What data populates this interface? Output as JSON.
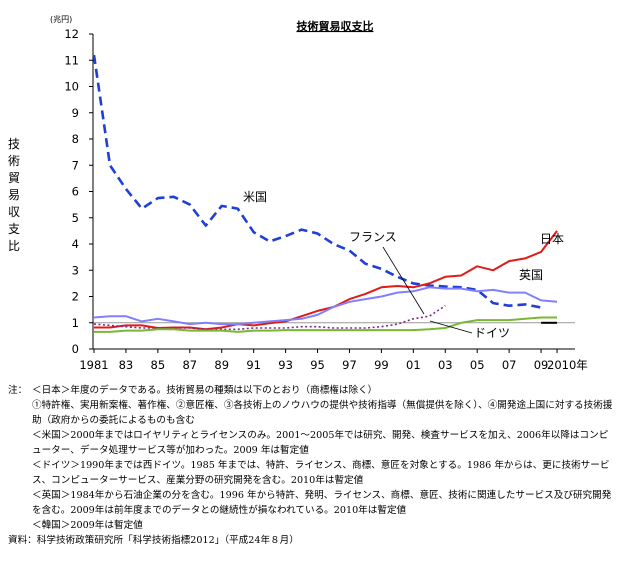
{
  "chart_data": {
    "type": "line",
    "title": "技術貿易収支比",
    "unit_label": "(兆円)",
    "ylabel": "技術貿易収支比",
    "ylim": [
      0,
      12
    ],
    "yticks": [
      "0",
      "1",
      "2",
      "3",
      "4",
      "5",
      "6",
      "7",
      "8",
      "9",
      "10",
      "11",
      "12"
    ],
    "xlim": [
      1981,
      2011
    ],
    "xticks": [
      {
        "x": 1981,
        "label": "1981"
      },
      {
        "x": 1983,
        "label": "83"
      },
      {
        "x": 1985,
        "label": "85"
      },
      {
        "x": 1987,
        "label": "87"
      },
      {
        "x": 1989,
        "label": "89"
      },
      {
        "x": 1991,
        "label": "91"
      },
      {
        "x": 1993,
        "label": "93"
      },
      {
        "x": 1995,
        "label": "95"
      },
      {
        "x": 1997,
        "label": "97"
      },
      {
        "x": 1999,
        "label": "99"
      },
      {
        "x": 2001,
        "label": "01"
      },
      {
        "x": 2003,
        "label": "03"
      },
      {
        "x": 2005,
        "label": "05"
      },
      {
        "x": 2007,
        "label": "07"
      },
      {
        "x": 2009,
        "label": "09"
      },
      {
        "x": 2010,
        "label": "2010年"
      }
    ],
    "reference_line": 1,
    "series": [
      {
        "name": "米国",
        "color": "#1f3fd6",
        "style": "dashed",
        "x": [
          1981,
          1982,
          1983,
          1984,
          1985,
          1986,
          1987,
          1988,
          1989,
          1990,
          1991,
          1992,
          1993,
          1994,
          1995,
          1996,
          1997,
          1998,
          1999,
          2000,
          2001,
          2002,
          2003,
          2004,
          2005,
          2006,
          2007,
          2008,
          2009
        ],
        "values": [
          11.2,
          7.0,
          6.1,
          5.35,
          5.75,
          5.8,
          5.5,
          4.7,
          5.45,
          5.35,
          4.45,
          4.1,
          4.3,
          4.55,
          4.4,
          4.0,
          3.75,
          3.25,
          3.05,
          2.75,
          2.5,
          2.42,
          2.38,
          2.35,
          2.25,
          1.75,
          1.65,
          1.7,
          1.58
        ]
      },
      {
        "name": "日本",
        "color": "#e01b1b",
        "style": "solid",
        "x": [
          1981,
          1982,
          1983,
          1984,
          1985,
          1986,
          1987,
          1988,
          1989,
          1990,
          1991,
          1992,
          1993,
          1994,
          1995,
          1996,
          1997,
          1998,
          1999,
          2000,
          2001,
          2002,
          2003,
          2004,
          2005,
          2006,
          2007,
          2008,
          2009,
          2010
        ],
        "values": [
          0.82,
          0.82,
          0.9,
          0.9,
          0.8,
          0.82,
          0.82,
          0.75,
          0.82,
          0.95,
          0.9,
          0.98,
          1.05,
          1.25,
          1.45,
          1.6,
          1.9,
          2.1,
          2.35,
          2.4,
          2.35,
          2.5,
          2.75,
          2.8,
          3.15,
          3.0,
          3.35,
          3.45,
          3.7,
          4.5
        ]
      },
      {
        "name": "英国",
        "color": "#8080ff",
        "style": "solid",
        "x": [
          1981,
          1982,
          1983,
          1984,
          1985,
          1986,
          1987,
          1988,
          1989,
          1990,
          1991,
          1992,
          1993,
          1994,
          1995,
          1996,
          1997,
          1998,
          1999,
          2000,
          2001,
          2002,
          2003,
          2004,
          2005,
          2006,
          2007,
          2008,
          2009,
          2010
        ],
        "values": [
          1.2,
          1.25,
          1.25,
          1.05,
          1.15,
          1.05,
          0.95,
          1.0,
          0.95,
          0.95,
          1.0,
          1.05,
          1.1,
          1.15,
          1.3,
          1.6,
          1.8,
          1.9,
          2.0,
          2.15,
          2.2,
          2.35,
          2.3,
          2.3,
          2.2,
          2.25,
          2.15,
          2.15,
          1.85,
          1.8
        ]
      },
      {
        "name": "フランス",
        "color": "#7a2b8e",
        "style": "dotted",
        "x": [
          1981,
          1982,
          1983,
          1984,
          1985,
          1986,
          1987,
          1988,
          1989,
          1990,
          1991,
          1992,
          1993,
          1994,
          1995,
          1996,
          1997,
          1998,
          1999,
          2000,
          2001,
          2002,
          2003
        ],
        "values": [
          0.95,
          0.9,
          0.85,
          0.8,
          0.8,
          0.8,
          0.8,
          0.75,
          0.75,
          0.75,
          0.8,
          0.8,
          0.8,
          0.85,
          0.85,
          0.8,
          0.8,
          0.8,
          0.85,
          0.95,
          1.15,
          1.25,
          1.65
        ]
      },
      {
        "name": "ドイツ",
        "color": "#79b830",
        "style": "solid",
        "x": [
          1981,
          1982,
          1983,
          1984,
          1985,
          1986,
          1987,
          1988,
          1989,
          1990,
          1991,
          1992,
          1993,
          1994,
          1995,
          1996,
          1997,
          1998,
          1999,
          2000,
          2001,
          2002,
          2003,
          2004,
          2005,
          2006,
          2007,
          2008,
          2009,
          2010
        ],
        "values": [
          0.65,
          0.65,
          0.7,
          0.7,
          0.75,
          0.75,
          0.7,
          0.7,
          0.7,
          0.65,
          0.7,
          0.7,
          0.72,
          0.72,
          0.72,
          0.72,
          0.72,
          0.72,
          0.72,
          0.72,
          0.72,
          0.75,
          0.8,
          1.0,
          1.1,
          1.1,
          1.1,
          1.15,
          1.2,
          1.2
        ]
      },
      {
        "name": "",
        "color": "#000000",
        "style": "solid",
        "x": [
          2009,
          2010
        ],
        "values": [
          1.0,
          1.0
        ]
      }
    ]
  },
  "notes": {
    "lead": "注：",
    "lines": [
      "＜日本＞年度のデータである。技術貿易の種類は以下のとおり（商標権は除く）",
      "①特許権、実用新案権、著作権、②意匠権、③各技術上のノウハウの提供や技術指導（無償提供を除く）、④開発途上国に対する技術援助（政府からの委託によるものも含む",
      "＜米国＞2000年まではロイヤリティとライセンスのみ。2001～2005年では研究、開発、検査サービスを加え、2006年以降はコンピューター、データ処理サービス等が加わった。2009 年は暫定値",
      "＜ドイツ＞1990年までは西ドイツ。1985 年までは、特許、ライセンス、商標、意匠を対象とする。1986 年からは、更に技術サービス、コンピューターサービス、産業分野の研究開発を含む。2010年は暫定値",
      "＜英国＞1984年から石油企業の分を含む。1996 年から特許、発明、ライセンス、商標、意匠、技術に関連したサービス及び研究開発を含む。2009年は前年度までのデータとの継続性が損なわれている。2010年は暫定値",
      "＜韓国＞2009年は暫定値"
    ],
    "source_lead": "資料：",
    "source": "科学技術政策研究所「科学技術指標2012」（平成24年８月）"
  }
}
